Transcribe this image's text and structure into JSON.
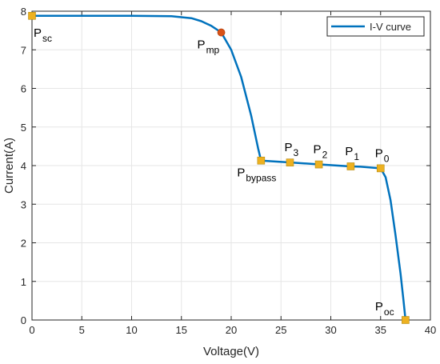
{
  "chart_data": {
    "type": "line",
    "xlabel": "Voltage(V)",
    "ylabel": "Current(A)",
    "xlim": [
      0,
      40
    ],
    "ylim": [
      0,
      8
    ],
    "x_ticks": [
      "0",
      "5",
      "10",
      "15",
      "20",
      "25",
      "30",
      "35",
      "40"
    ],
    "y_ticks": [
      "0",
      "1",
      "2",
      "3",
      "4",
      "5",
      "6",
      "7",
      "8"
    ],
    "grid": true,
    "legend_position": "top-right",
    "colors": {
      "line": "#0072BD",
      "square_marker": "#EDB120",
      "mp_marker": "#D95319"
    },
    "series": [
      {
        "name": "I-V curve",
        "x": [
          0,
          5,
          10,
          14,
          16,
          17,
          18,
          19,
          20,
          21,
          22,
          22.7,
          23,
          26,
          29,
          32,
          33,
          34,
          35,
          35.5,
          36,
          36.5,
          37,
          37.3,
          37.5
        ],
        "y": [
          7.88,
          7.88,
          7.88,
          7.87,
          7.82,
          7.74,
          7.62,
          7.45,
          7.0,
          6.3,
          5.3,
          4.45,
          4.13,
          4.08,
          4.03,
          3.98,
          3.97,
          3.95,
          3.93,
          3.7,
          3.1,
          2.2,
          1.2,
          0.5,
          0.0
        ]
      }
    ],
    "points": [
      {
        "label": "P",
        "sub": "sc",
        "x": 0,
        "y": 7.88,
        "marker": "square"
      },
      {
        "label": "P",
        "sub": "mp",
        "x": 19,
        "y": 7.45,
        "marker": "circle"
      },
      {
        "label": "P",
        "sub": "bypass",
        "x": 23,
        "y": 4.13,
        "marker": "square"
      },
      {
        "label": "P",
        "sub": "3",
        "x": 25.9,
        "y": 4.08,
        "marker": "square"
      },
      {
        "label": "P",
        "sub": "2",
        "x": 28.8,
        "y": 4.03,
        "marker": "square"
      },
      {
        "label": "P",
        "sub": "1",
        "x": 32,
        "y": 3.98,
        "marker": "square"
      },
      {
        "label": "P",
        "sub": "0",
        "x": 35,
        "y": 3.93,
        "marker": "square"
      },
      {
        "label": "P",
        "sub": "oc",
        "x": 37.5,
        "y": 0,
        "marker": "square"
      }
    ]
  }
}
